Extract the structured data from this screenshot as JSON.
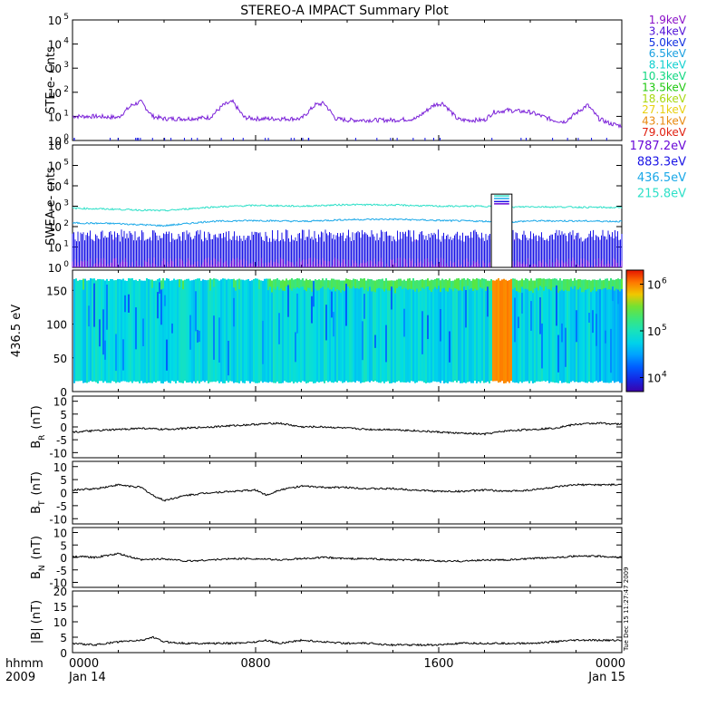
{
  "title": "STEREO-A IMPACT Summary Plot",
  "side_stamp": "Tue Dec 15 11:27:47 2009",
  "time_axis": {
    "corner_labels": [
      "hhmm",
      "2009"
    ],
    "ticks": [
      {
        "hhmm": "0000",
        "date": "Jan 14",
        "hour": 0
      },
      {
        "hhmm": "0800",
        "date": "",
        "hour": 8
      },
      {
        "hhmm": "1600",
        "date": "",
        "hour": 16
      },
      {
        "hhmm": "0000",
        "date": "Jan 15",
        "hour": 24
      }
    ]
  },
  "colors": {
    "ste_trace": "#7a20d8",
    "ste_low": "#1010e0",
    "swea_1787": "#6a0ad8",
    "swea_883": "#1a14e6",
    "swea_436": "#1aa8e8",
    "swea_215": "#2ee0c8",
    "line_black": "#000000"
  },
  "legend_ste": [
    {
      "label": "1.9keV",
      "color": "#8a10c8"
    },
    {
      "label": "3.4keV",
      "color": "#5010d8"
    },
    {
      "label": "5.0keV",
      "color": "#1030e0"
    },
    {
      "label": "6.5keV",
      "color": "#1aa0e0"
    },
    {
      "label": "8.1keV",
      "color": "#10d0d0"
    },
    {
      "label": "10.3keV",
      "color": "#10d880"
    },
    {
      "label": "13.5keV",
      "color": "#20c810"
    },
    {
      "label": "18.6keV",
      "color": "#a8d810"
    },
    {
      "label": "27.1keV",
      "color": "#e8d010"
    },
    {
      "label": "43.1keV",
      "color": "#e88a10"
    },
    {
      "label": "79.0keV",
      "color": "#e02010"
    }
  ],
  "legend_swea": [
    {
      "label": "1787.2eV",
      "color": "#6a0ad8"
    },
    {
      "label": "883.3eV",
      "color": "#1a14e6"
    },
    {
      "label": "436.5eV",
      "color": "#1aa8e8"
    },
    {
      "label": "215.8eV",
      "color": "#2ee0c8"
    }
  ],
  "chart_data": [
    {
      "panel": "STE",
      "type": "line",
      "ylabel": "STE e- Cnts",
      "y_scale": "log",
      "ylim": [
        1,
        100000
      ],
      "y_ticks": [
        {
          "base": "10",
          "exp": "0",
          "v": 1
        },
        {
          "base": "10",
          "exp": "1",
          "v": 10
        },
        {
          "base": "10",
          "exp": "2",
          "v": 100
        },
        {
          "base": "10",
          "exp": "3",
          "v": 1000
        },
        {
          "base": "10",
          "exp": "4",
          "v": 10000
        },
        {
          "base": "10",
          "exp": "5",
          "v": 100000
        }
      ],
      "series": [
        {
          "name": "1.9keV",
          "x_hours": [
            0,
            1,
            2,
            2.6,
            3,
            3.5,
            4,
            5,
            6,
            6.6,
            7,
            7.5,
            8,
            9,
            10,
            10.6,
            11,
            11.5,
            12,
            13,
            14,
            15,
            15.8,
            16.2,
            16.8,
            17,
            18,
            18.4,
            19,
            20,
            21,
            21.5,
            22.5,
            23,
            23.5,
            24
          ],
          "values": [
            10,
            10,
            9,
            30,
            40,
            10,
            8,
            8,
            9,
            30,
            40,
            9,
            8,
            8,
            8,
            30,
            35,
            8,
            7,
            7,
            7,
            8,
            30,
            35,
            8,
            7,
            7,
            15,
            18,
            15,
            7,
            6,
            30,
            8,
            5,
            4
          ]
        }
      ]
    },
    {
      "panel": "SWEA",
      "type": "line",
      "ylabel": "SWEA e- cnts",
      "y_scale": "log",
      "ylim": [
        1,
        1000000
      ],
      "y_ticks": [
        {
          "base": "10",
          "exp": "0",
          "v": 1
        },
        {
          "base": "10",
          "exp": "1",
          "v": 10
        },
        {
          "base": "10",
          "exp": "2",
          "v": 100
        },
        {
          "base": "10",
          "exp": "3",
          "v": 1000
        },
        {
          "base": "10",
          "exp": "4",
          "v": 10000
        },
        {
          "base": "10",
          "exp": "5",
          "v": 100000
        },
        {
          "base": "10",
          "exp": "6",
          "v": 1000000
        }
      ],
      "gap_hours": [
        18.3,
        19.2
      ],
      "gap_levels": [
        3200,
        2400,
        1700,
        1300
      ],
      "series": [
        {
          "name": "215.8eV",
          "x_hours": [
            0,
            2,
            4,
            6,
            8,
            10,
            12,
            14,
            16,
            18.3,
            19.2,
            20,
            22,
            24
          ],
          "values": [
            800,
            700,
            600,
            900,
            1100,
            1000,
            1200,
            1150,
            1000,
            1000,
            900,
            950,
            900,
            850
          ]
        },
        {
          "name": "436.5eV",
          "x_hours": [
            0,
            2,
            4,
            6,
            8,
            10,
            12,
            14,
            16,
            18.3,
            19.2,
            20,
            22,
            24
          ],
          "values": [
            150,
            140,
            110,
            180,
            200,
            180,
            220,
            230,
            200,
            180,
            170,
            190,
            190,
            180
          ]
        },
        {
          "name": "883.3eV",
          "x_hours": [
            0,
            24
          ],
          "values": [
            8,
            8
          ]
        },
        {
          "name": "1787.2eV",
          "x_hours": [
            0,
            24
          ],
          "values": [
            2,
            2
          ]
        }
      ]
    },
    {
      "panel": "SPECTROGRAM",
      "type": "heatmap",
      "ylabel": "436.5 eV",
      "ylim": [
        0,
        180
      ],
      "y_ticks": [
        0,
        50,
        100,
        150
      ],
      "data_y_range": [
        12,
        168
      ],
      "colorbar": {
        "scale": "log",
        "range": [
          5000,
          2000000
        ],
        "ticks": [
          {
            "base": "10",
            "exp": "4",
            "v": 10000
          },
          {
            "base": "10",
            "exp": "5",
            "v": 100000
          },
          {
            "base": "10",
            "exp": "6",
            "v": 1000000
          }
        ]
      },
      "features": {
        "enhanced_interval_hours": [
          18.3,
          19.2
        ],
        "green_top_band_hours": [
          8.5,
          24
        ]
      }
    },
    {
      "panel": "BR",
      "type": "line",
      "ylabel": "B",
      "ylabel_sub": "R",
      "ylabel_unit": "(nT)",
      "ylim": [
        -12,
        12
      ],
      "y_ticks": [
        -10,
        -5,
        0,
        5,
        10
      ],
      "series": [
        {
          "name": "",
          "x_hours": [
            0,
            1,
            2,
            3,
            4,
            5,
            6,
            7,
            8,
            9,
            10,
            11,
            12,
            13,
            14,
            15,
            16,
            17,
            18,
            19,
            20,
            21,
            22,
            23,
            24
          ],
          "values": [
            -2,
            -1.5,
            -1,
            -0.5,
            -1,
            -0.5,
            0,
            0.5,
            1,
            1.5,
            0,
            0,
            -0.5,
            -1,
            -1,
            -1.5,
            -2,
            -2.5,
            -2.8,
            -1.5,
            -1,
            -0.5,
            1,
            1.5,
            1
          ]
        }
      ]
    },
    {
      "panel": "BT",
      "type": "line",
      "ylabel": "B",
      "ylabel_sub": "T",
      "ylabel_unit": "(nT)",
      "ylim": [
        -12,
        12
      ],
      "y_ticks": [
        -10,
        -5,
        0,
        5,
        10
      ],
      "series": [
        {
          "name": "",
          "x_hours": [
            0,
            1,
            2,
            3,
            3.5,
            4,
            5,
            6,
            7,
            8,
            8.5,
            9,
            10,
            11,
            12,
            13,
            14,
            15,
            16,
            17,
            18,
            19,
            20,
            21,
            22,
            23,
            24
          ],
          "values": [
            1,
            1.5,
            3,
            2,
            -1,
            -3,
            -1,
            0,
            0.5,
            1,
            -1,
            1,
            2.5,
            2,
            2,
            1.5,
            1.5,
            1,
            0.5,
            0.5,
            1,
            0.5,
            1,
            2,
            3,
            3,
            3
          ]
        }
      ]
    },
    {
      "panel": "BN",
      "type": "line",
      "ylabel": "B",
      "ylabel_sub": "N",
      "ylabel_unit": "(nT)",
      "ylim": [
        -12,
        12
      ],
      "y_ticks": [
        -10,
        -5,
        0,
        5,
        10
      ],
      "series": [
        {
          "name": "",
          "x_hours": [
            0,
            1,
            2,
            3,
            4,
            5,
            6,
            7,
            8,
            9,
            10,
            11,
            12,
            13,
            14,
            15,
            16,
            17,
            18,
            19,
            20,
            21,
            22,
            23,
            24
          ],
          "values": [
            0.5,
            0,
            1.5,
            -1,
            -0.5,
            -1.5,
            -1,
            -0.5,
            -0.5,
            -1,
            -0.5,
            0,
            -0.5,
            -0.5,
            -1,
            -1,
            -1.5,
            -1.5,
            -1,
            -1,
            -0.5,
            0,
            0.5,
            0.5,
            0
          ]
        }
      ]
    },
    {
      "panel": "BMAG",
      "type": "line",
      "ylabel": "|B| (nT)",
      "ylim": [
        0,
        20
      ],
      "y_ticks": [
        0,
        5,
        10,
        15,
        20
      ],
      "series": [
        {
          "name": "",
          "x_hours": [
            0,
            1,
            2,
            3,
            3.5,
            4,
            5,
            6,
            7,
            8,
            8.5,
            9,
            10,
            11,
            12,
            13,
            14,
            15,
            16,
            17,
            18,
            19,
            20,
            21,
            22,
            23,
            24
          ],
          "values": [
            3,
            2.5,
            3.5,
            4,
            5,
            3.5,
            3,
            3,
            3,
            3.5,
            4,
            3,
            4,
            3.5,
            3,
            3,
            2.5,
            2.5,
            2.5,
            3,
            3,
            3,
            3,
            3.5,
            4,
            4,
            4
          ]
        }
      ]
    }
  ]
}
